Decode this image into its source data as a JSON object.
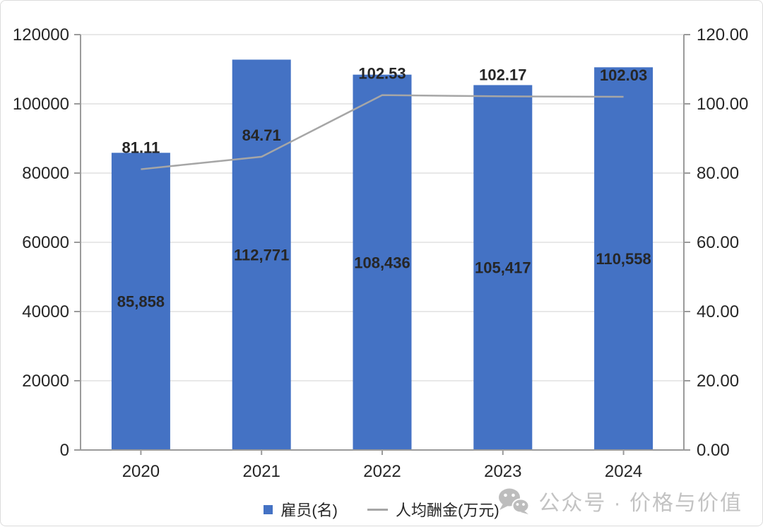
{
  "chart_data": {
    "type": "combo-bar-line",
    "categories": [
      "2020",
      "2021",
      "2022",
      "2023",
      "2024"
    ],
    "series": [
      {
        "name": "雇员(名)",
        "type": "bar",
        "axis": "left",
        "values": [
          85858,
          112771,
          108436,
          105417,
          110558
        ],
        "labels": [
          "85,858",
          "112,771",
          "108,436",
          "105,417",
          "110,558"
        ],
        "color": "#4472C4"
      },
      {
        "name": "人均酬金(万元)",
        "type": "line",
        "axis": "right",
        "values": [
          81.11,
          84.71,
          102.53,
          102.17,
          102.03
        ],
        "labels": [
          "81.11",
          "84.71",
          "102.53",
          "102.17",
          "102.03"
        ],
        "color": "#A6A6A6"
      }
    ],
    "left_axis": {
      "min": 0,
      "max": 120000,
      "step": 20000,
      "tick_values": [
        0,
        20000,
        40000,
        60000,
        80000,
        100000,
        120000
      ],
      "tick_labels": [
        "0",
        "20000",
        "40000",
        "60000",
        "80000",
        "100000",
        "120000"
      ]
    },
    "right_axis": {
      "min": 0,
      "max": 120,
      "step": 20,
      "tick_values": [
        0,
        20,
        40,
        60,
        80,
        100,
        120
      ],
      "tick_labels": [
        "0.00",
        "20.00",
        "40.00",
        "60.00",
        "80.00",
        "100.00",
        "120.00"
      ]
    },
    "grid": true,
    "legend_position": "bottom",
    "title": "",
    "colors": {
      "bar": "#4472C4",
      "line": "#A6A6A6",
      "gridline": "#E0E0E0",
      "axis": "#9B9B9B",
      "text": "#262626",
      "watermark": "#C3C3C3"
    }
  },
  "legend": {
    "bar_label": "雇员(名)",
    "line_label": "人均酬金(万元)"
  },
  "watermark": {
    "icon": "wechat-icon",
    "text": "公众号 · 价格与价值"
  }
}
